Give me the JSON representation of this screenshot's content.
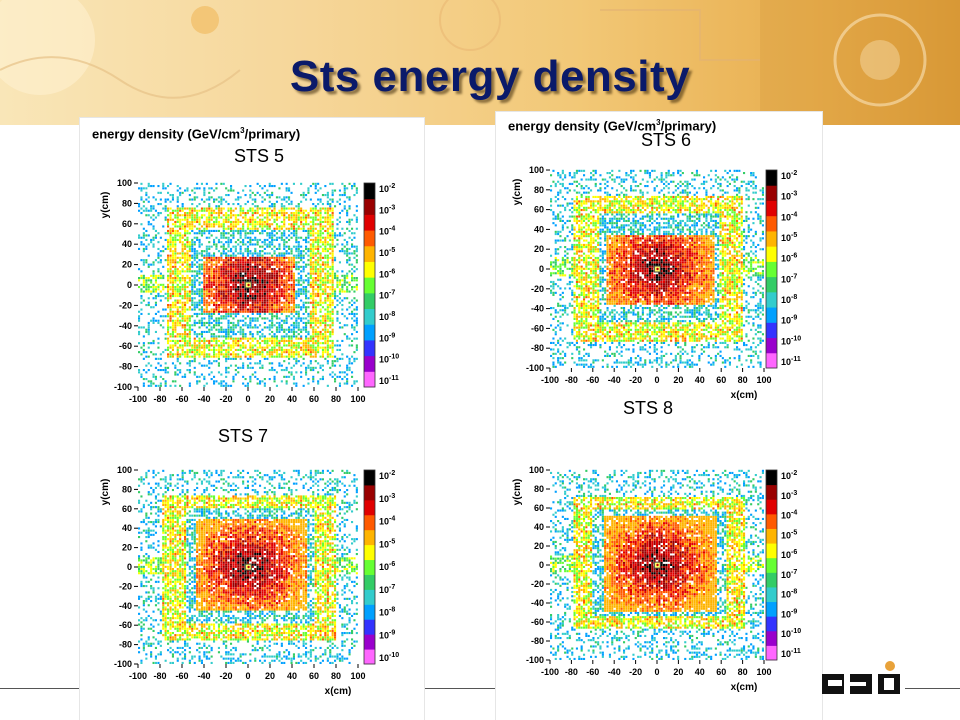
{
  "slide": {
    "title": "Sts energy density",
    "heading_main": "energy density (GeV/cm",
    "heading_sup": "3",
    "heading_tail": "/primary)",
    "logo_text": "GSI"
  },
  "colors": {
    "title": "#0a1a6a",
    "banner_start": "#f9e6b8",
    "banner_end": "#d99733",
    "colorbar": [
      "#ff66ff",
      "#9900cc",
      "#3333ff",
      "#00a0ff",
      "#33cccc",
      "#33cc66",
      "#66ff33",
      "#ffff00",
      "#ffb400",
      "#ff5a00",
      "#e00000",
      "#990000",
      "#000000"
    ]
  },
  "chart_data": [
    {
      "type": "heatmap",
      "name": "STS 5",
      "label": "STS 5",
      "xlabel": "",
      "ylabel": "y(cm)",
      "xlim": [
        -100,
        100
      ],
      "ylim": [
        -100,
        100
      ],
      "x_ticks": [
        "-100",
        "-80",
        "-60",
        "-40",
        "-20",
        "0",
        "20",
        "40",
        "60",
        "80",
        "100"
      ],
      "y_ticks": [
        "100",
        "80",
        "60",
        "40",
        "20",
        "0",
        "-20",
        "-40",
        "-60",
        "-80",
        "-100"
      ],
      "colorbar_ticks": [
        "10-2",
        "10-3",
        "10-4",
        "10-5",
        "10-6",
        "10-7",
        "10-8",
        "10-9",
        "10-10",
        "10-11"
      ],
      "outer_frame": [
        -75,
        78,
        -72,
        75
      ],
      "inner_window": [
        -53,
        55,
        -52,
        52
      ],
      "core": [
        -42,
        42,
        -28,
        26
      ],
      "wings": [
        -100,
        100,
        -8,
        10
      ]
    },
    {
      "type": "heatmap",
      "name": "STS 6",
      "label": "STS 6",
      "xlabel": "x(cm)",
      "ylabel": "y(cm)",
      "xlim": [
        -100,
        100
      ],
      "ylim": [
        -100,
        100
      ],
      "x_ticks": [
        "-100",
        "-80",
        "-60",
        "-40",
        "-20",
        "0",
        "20",
        "40",
        "60",
        "80",
        "100"
      ],
      "y_ticks": [
        "100",
        "80",
        "60",
        "40",
        "20",
        "0",
        "-20",
        "-40",
        "-60",
        "-80",
        "-100"
      ],
      "colorbar_ticks": [
        "10-2",
        "10-3",
        "10-4",
        "10-5",
        "10-6",
        "10-7",
        "10-8",
        "10-9",
        "10-10",
        "10-11"
      ],
      "outer_frame": [
        -78,
        80,
        -75,
        73
      ],
      "inner_window": [
        -55,
        58,
        -55,
        55
      ],
      "core": [
        -48,
        52,
        -37,
        33
      ],
      "wings": [
        -100,
        100,
        -8,
        12
      ]
    },
    {
      "type": "heatmap",
      "name": "STS 7",
      "label": "STS 7",
      "xlabel": "x(cm)",
      "ylabel": "y(cm)",
      "xlim": [
        -100,
        100
      ],
      "ylim": [
        -100,
        100
      ],
      "x_ticks": [
        "-100",
        "-80",
        "-60",
        "-40",
        "-20",
        "0",
        "20",
        "40",
        "60",
        "80",
        "100"
      ],
      "y_ticks": [
        "100",
        "80",
        "60",
        "40",
        "20",
        "0",
        "-20",
        "-40",
        "-60",
        "-80",
        "-100"
      ],
      "colorbar_ticks": [
        "10-2",
        "10-3",
        "10-4",
        "10-5",
        "10-6",
        "10-7",
        "10-8",
        "10-9",
        "10-10"
      ],
      "outer_frame": [
        -78,
        80,
        -76,
        72
      ],
      "inner_window": [
        -58,
        60,
        -60,
        60
      ],
      "core": [
        -48,
        52,
        -46,
        48
      ],
      "wings": [
        -100,
        100,
        -8,
        10
      ]
    },
    {
      "type": "heatmap",
      "name": "STS 8",
      "label": "STS 8",
      "xlabel": "x(cm)",
      "ylabel": "y(cm)",
      "xlim": [
        -100,
        100
      ],
      "ylim": [
        -100,
        100
      ],
      "x_ticks": [
        "-100",
        "-80",
        "-60",
        "-40",
        "-20",
        "0",
        "20",
        "40",
        "60",
        "80",
        "100"
      ],
      "y_ticks": [
        "100",
        "80",
        "60",
        "40",
        "20",
        "0",
        "-20",
        "-40",
        "-60",
        "-80",
        "-100"
      ],
      "colorbar_ticks": [
        "10-2",
        "10-3",
        "10-4",
        "10-5",
        "10-6",
        "10-7",
        "10-8",
        "10-9",
        "10-10",
        "10-11"
      ],
      "outer_frame": [
        -80,
        82,
        -68,
        70
      ],
      "inner_window": [
        -62,
        64,
        -55,
        58
      ],
      "core": [
        -50,
        55,
        -50,
        50
      ],
      "wings": [
        -100,
        100,
        -8,
        10
      ]
    }
  ]
}
